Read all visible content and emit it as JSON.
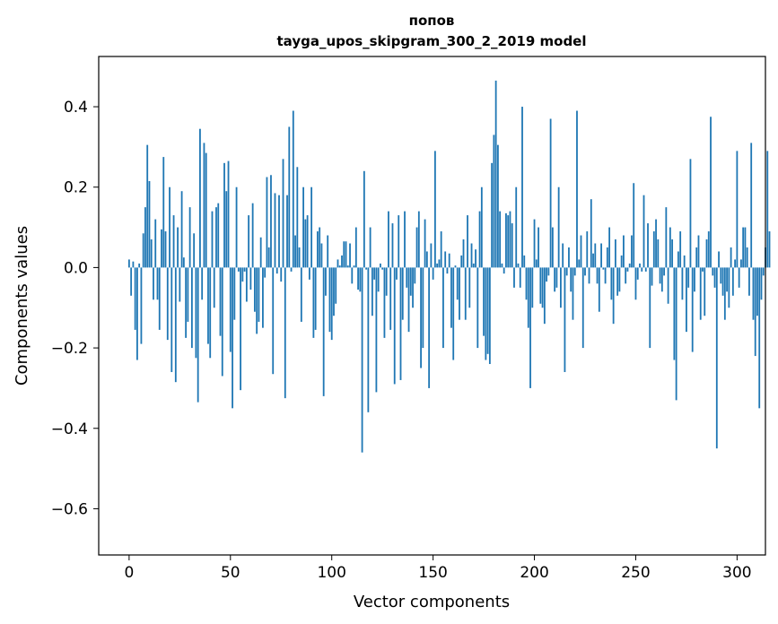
{
  "chart_data": {
    "type": "bar",
    "title_line1": "попов",
    "title_line2": "tayga_upos_skipgram_300_2_2019 model",
    "xlabel": "Vector components",
    "ylabel": "Components values",
    "xlim": [
      -15,
      314
    ],
    "ylim": [
      -0.715,
      0.525
    ],
    "x_ticks": [
      0,
      50,
      100,
      150,
      200,
      250,
      300
    ],
    "y_ticks": [
      0.4,
      0.2,
      0.0,
      -0.2,
      -0.4,
      -0.6
    ],
    "x_tick_labels": [
      "0",
      "50",
      "100",
      "150",
      "200",
      "250",
      "300"
    ],
    "y_tick_labels": [
      "0.4",
      "0.2",
      "0.0",
      "−0.2",
      "−0.4",
      "−0.6"
    ],
    "bar_color": "#1f77b4",
    "values": [
      0.02,
      -0.07,
      0.015,
      -0.155,
      -0.23,
      0.01,
      -0.19,
      0.085,
      0.15,
      0.305,
      0.215,
      0.07,
      -0.08,
      0.12,
      -0.08,
      -0.155,
      0.095,
      0.275,
      0.09,
      -0.18,
      0.2,
      -0.26,
      0.13,
      -0.285,
      0.1,
      -0.085,
      0.19,
      0.025,
      -0.175,
      -0.135,
      0.15,
      -0.2,
      0.085,
      -0.225,
      -0.335,
      0.345,
      -0.08,
      0.31,
      0.285,
      -0.19,
      -0.225,
      0.14,
      -0.1,
      0.15,
      0.16,
      -0.17,
      -0.27,
      0.26,
      0.19,
      0.265,
      -0.21,
      -0.35,
      -0.13,
      0.2,
      -0.01,
      -0.305,
      -0.035,
      -0.01,
      -0.085,
      0.13,
      -0.055,
      0.16,
      -0.11,
      -0.165,
      -0.135,
      0.075,
      -0.15,
      -0.025,
      0.225,
      0.05,
      0.23,
      -0.265,
      0.185,
      -0.015,
      0.18,
      -0.035,
      0.27,
      -0.325,
      0.18,
      0.35,
      -0.01,
      0.39,
      0.08,
      0.25,
      0.05,
      -0.135,
      0.2,
      0.12,
      0.13,
      -0.03,
      0.2,
      -0.175,
      -0.155,
      0.09,
      0.1,
      0.06,
      -0.32,
      -0.07,
      0.08,
      -0.16,
      -0.18,
      -0.12,
      -0.09,
      0.02,
      0.005,
      0.03,
      0.065,
      0.065,
      0.005,
      0.06,
      -0.04,
      0.005,
      0.1,
      -0.055,
      -0.06,
      -0.46,
      0.24,
      -0.005,
      -0.36,
      0.1,
      -0.12,
      -0.03,
      -0.31,
      -0.06,
      0.01,
      -0.005,
      -0.175,
      -0.07,
      0.14,
      -0.155,
      0.11,
      -0.29,
      -0.03,
      0.13,
      -0.28,
      -0.13,
      0.14,
      -0.05,
      -0.16,
      -0.07,
      -0.1,
      -0.04,
      0.1,
      0.14,
      -0.25,
      -0.2,
      0.12,
      0.04,
      -0.3,
      0.06,
      -0.03,
      0.29,
      0.01,
      0.02,
      0.09,
      -0.2,
      0.04,
      -0.015,
      0.035,
      -0.15,
      -0.23,
      0.005,
      -0.08,
      -0.13,
      0.03,
      0.07,
      -0.13,
      0.13,
      -0.1,
      0.06,
      0.01,
      0.045,
      -0.2,
      0.14,
      0.2,
      -0.17,
      -0.23,
      -0.215,
      -0.24,
      0.26,
      0.33,
      0.465,
      0.305,
      0.14,
      0.01,
      -0.015,
      0.135,
      0.13,
      0.14,
      0.11,
      -0.05,
      0.2,
      0.01,
      -0.05,
      0.4,
      0.03,
      -0.08,
      -0.15,
      -0.3,
      -0.1,
      0.12,
      0.02,
      0.1,
      -0.09,
      -0.1,
      -0.14,
      -0.035,
      -0.02,
      0.37,
      0.1,
      -0.06,
      -0.05,
      0.2,
      -0.1,
      0.06,
      -0.26,
      -0.02,
      0.05,
      -0.06,
      -0.13,
      -0.02,
      0.39,
      0.02,
      0.08,
      -0.2,
      -0.02,
      0.09,
      -0.04,
      0.17,
      0.035,
      0.06,
      -0.04,
      -0.11,
      0.06,
      -0.005,
      -0.04,
      0.05,
      0.1,
      -0.08,
      -0.14,
      0.07,
      -0.07,
      -0.06,
      0.03,
      0.08,
      -0.04,
      -0.01,
      0.01,
      0.08,
      0.21,
      -0.08,
      -0.03,
      0.01,
      -0.01,
      0.18,
      -0.01,
      0.11,
      -0.2,
      -0.045,
      0.09,
      0.12,
      0.07,
      -0.04,
      -0.06,
      -0.02,
      0.15,
      -0.09,
      0.1,
      0.07,
      -0.23,
      -0.33,
      0.04,
      0.09,
      -0.08,
      0.03,
      -0.16,
      -0.05,
      0.27,
      -0.21,
      -0.06,
      0.05,
      0.08,
      -0.13,
      -0.01,
      -0.12,
      0.07,
      0.09,
      0.375,
      -0.02,
      -0.05,
      -0.45,
      0.04,
      -0.04,
      -0.07,
      -0.13,
      -0.06,
      -0.1,
      0.05,
      -0.07,
      0.02,
      0.29,
      -0.05,
      0.02,
      0.1,
      0.1,
      0.05,
      -0.07,
      0.31,
      -0.13,
      -0.22,
      -0.12,
      -0.35,
      -0.08,
      -0.02,
      0.05,
      0.29,
      0.09
    ]
  }
}
